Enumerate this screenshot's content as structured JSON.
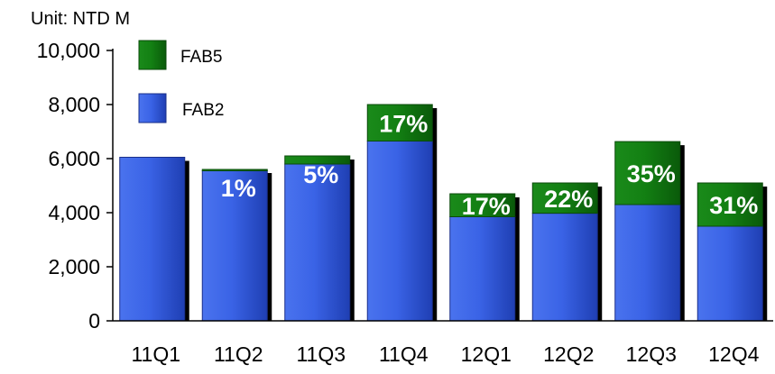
{
  "chart_data": {
    "type": "bar",
    "stacked": true,
    "unit": "Unit: NTD M",
    "categories": [
      "11Q1",
      "11Q2",
      "11Q3",
      "11Q4",
      "12Q1",
      "12Q2",
      "12Q3",
      "12Q4"
    ],
    "series": [
      {
        "name": "FAB2",
        "color": "#2f55d4",
        "values": [
          6050,
          5550,
          5800,
          6650,
          3850,
          3980,
          4300,
          3500
        ]
      },
      {
        "name": "FAB5",
        "color": "#117a11",
        "values": [
          0,
          50,
          300,
          1350,
          850,
          1120,
          2330,
          1600
        ]
      }
    ],
    "share_labels": [
      "",
      "1%",
      "5%",
      "17%",
      "17%",
      "22%",
      "35%",
      "31%"
    ],
    "ylim": [
      0,
      10000
    ],
    "yticks": [
      0,
      2000,
      4000,
      6000,
      8000,
      10000
    ],
    "ytick_labels": [
      "0",
      "2,000",
      "4,000",
      "6,000",
      "8,000",
      "10,000"
    ],
    "legend": {
      "position": "top-left",
      "items": [
        {
          "label": "FAB5",
          "color": "#117a11"
        },
        {
          "label": "FAB2",
          "color": "#2f55d4"
        }
      ]
    },
    "grid": false
  }
}
